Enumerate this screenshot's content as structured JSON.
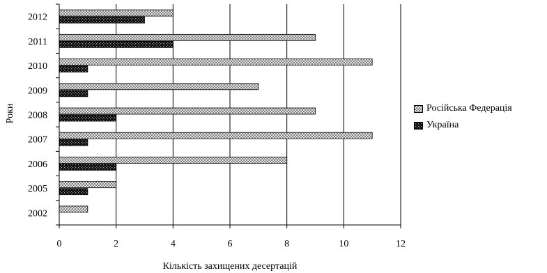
{
  "chart_data": {
    "type": "bar",
    "orientation": "horizontal",
    "title": "",
    "xlabel": "Кількість захищених десертацій",
    "ylabel": "Роки",
    "xlim": [
      0,
      12
    ],
    "xticks": [
      0,
      2,
      4,
      6,
      8,
      10,
      12
    ],
    "grid": "vertical",
    "legend_position": "right",
    "categories": [
      "2002",
      "2005",
      "2006",
      "2007",
      "2008",
      "2009",
      "2010",
      "2011",
      "2012"
    ],
    "series": [
      {
        "name": "Російська Федерація",
        "pattern": "crosshatch-light",
        "color": "#c8c8c8",
        "values": [
          1,
          2,
          8,
          11,
          9,
          7,
          11,
          9,
          4
        ]
      },
      {
        "name": "Україна",
        "pattern": "checker-dark",
        "color": "#111111",
        "values": [
          null,
          1,
          2,
          1,
          2,
          1,
          1,
          4,
          3
        ]
      }
    ]
  }
}
